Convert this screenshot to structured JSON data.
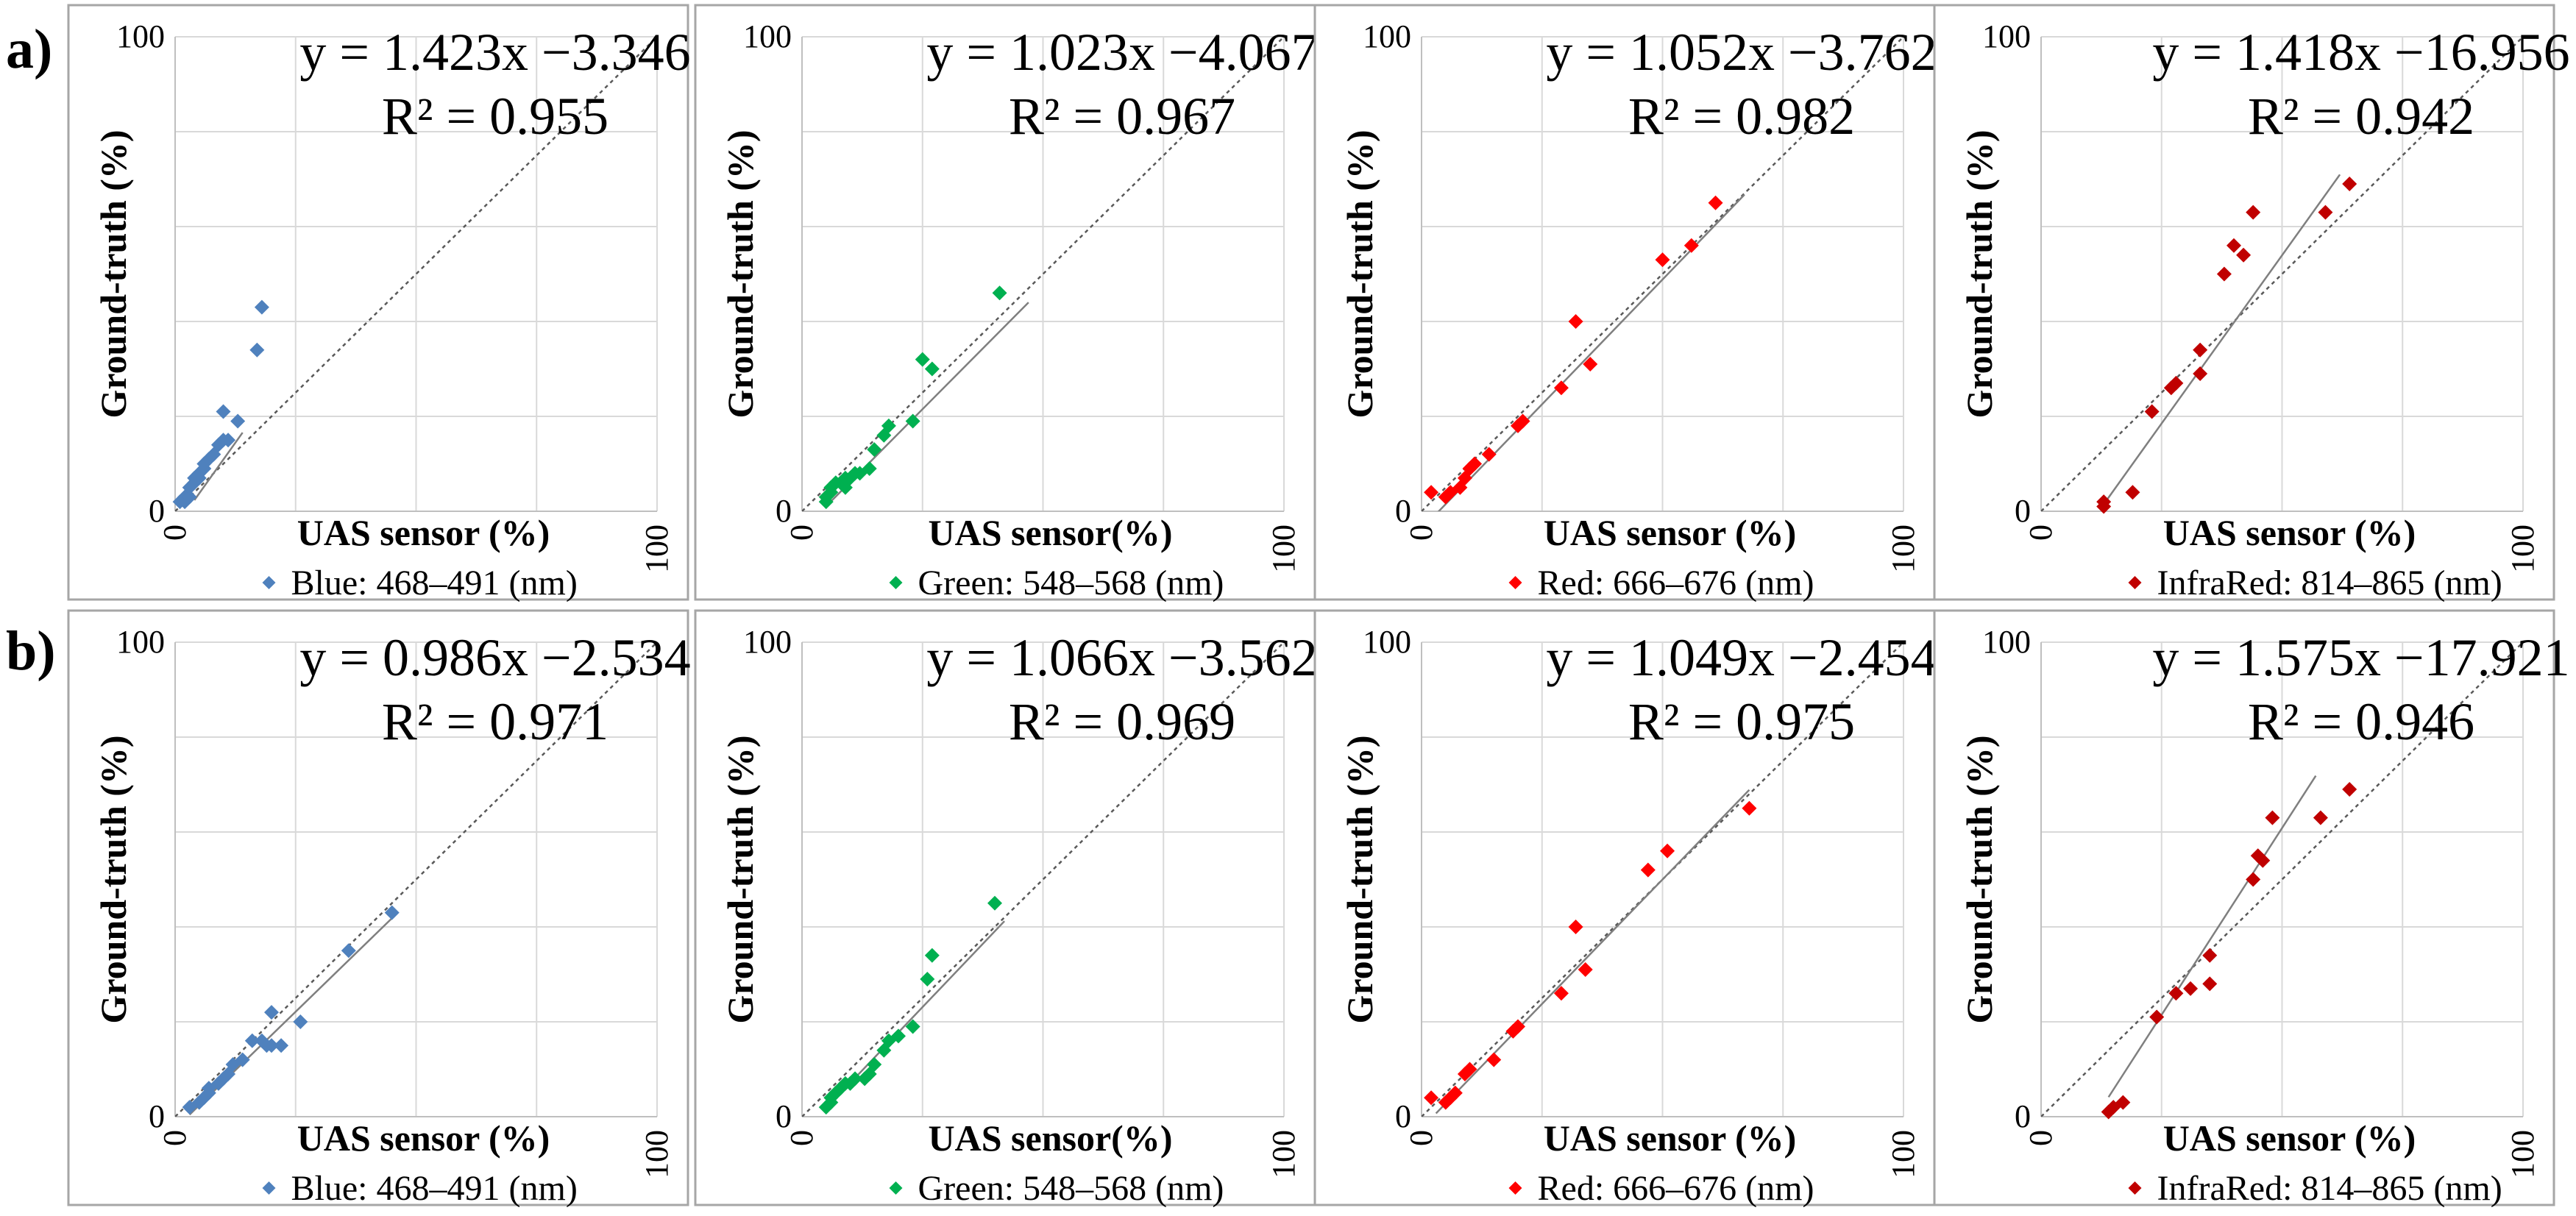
{
  "figure": {
    "row_labels": [
      "a)",
      "b)"
    ],
    "colors": {
      "blue": "#4f81bd",
      "green": "#00b050",
      "red": "#ff0000",
      "darkred": "#c00000",
      "grid": "#d9d9d9",
      "trend": "#7f7f7f",
      "identity": "#595959",
      "frame": "#a6a6a6"
    }
  },
  "chart_data": [
    {
      "row": "a)",
      "type": "scatter",
      "equation": "y = 1.423x −3.346",
      "r2": "R² = 0.955",
      "xlabel": "UAS sensor (%)",
      "ylabel": "Ground-truth (%)",
      "legend": "Blue: 468–491 (nm)",
      "color_key": "blue",
      "xlim": [
        0,
        100
      ],
      "ylim": [
        0,
        100
      ],
      "tick_labels": {
        "y_min": "0",
        "y_max": "100",
        "x_min": "0",
        "x_max": "100"
      },
      "slope": 1.423,
      "intercept": -3.346,
      "fit_range": [
        4,
        14
      ],
      "points": [
        [
          1,
          2
        ],
        [
          2,
          2
        ],
        [
          2,
          3
        ],
        [
          3,
          3
        ],
        [
          3,
          5
        ],
        [
          4,
          6
        ],
        [
          4,
          7
        ],
        [
          5,
          7
        ],
        [
          5,
          8
        ],
        [
          6,
          9
        ],
        [
          6,
          10
        ],
        [
          7,
          11
        ],
        [
          8,
          12
        ],
        [
          9,
          14
        ],
        [
          10,
          15
        ],
        [
          10,
          21
        ],
        [
          11,
          15
        ],
        [
          13,
          19
        ],
        [
          17,
          34
        ],
        [
          18,
          43
        ]
      ]
    },
    {
      "row": "a)",
      "type": "scatter",
      "equation": "y = 1.023x −4.067",
      "r2": "R² = 0.967",
      "xlabel": "UAS sensor(%)",
      "ylabel": "Ground-truth (%)",
      "legend": "Green: 548–568 (nm)",
      "color_key": "green",
      "xlim": [
        0,
        100
      ],
      "ylim": [
        0,
        100
      ],
      "tick_labels": {
        "y_min": "0",
        "y_max": "100",
        "x_min": "0",
        "x_max": "100"
      },
      "slope": 1.023,
      "intercept": -4.067,
      "fit_range": [
        6,
        47
      ],
      "points": [
        [
          5,
          2
        ],
        [
          5,
          3
        ],
        [
          6,
          4
        ],
        [
          6,
          5
        ],
        [
          7,
          6
        ],
        [
          8,
          6
        ],
        [
          9,
          5
        ],
        [
          9,
          7
        ],
        [
          10,
          7
        ],
        [
          11,
          8
        ],
        [
          12,
          8
        ],
        [
          14,
          9
        ],
        [
          15,
          13
        ],
        [
          17,
          16
        ],
        [
          18,
          18
        ],
        [
          23,
          19
        ],
        [
          25,
          32
        ],
        [
          27,
          30
        ],
        [
          41,
          46
        ]
      ]
    },
    {
      "row": "a)",
      "type": "scatter",
      "equation": "y = 1.052x −3.762",
      "r2": "R² = 0.982",
      "xlabel": "UAS sensor (%)",
      "ylabel": "Ground-truth (%)",
      "legend": "Red: 666–676 (nm)",
      "color_key": "red",
      "xlim": [
        0,
        100
      ],
      "ylim": [
        0,
        100
      ],
      "tick_labels": {
        "y_min": "0",
        "y_max": "100",
        "x_min": "0",
        "x_max": "100"
      },
      "slope": 1.052,
      "intercept": -3.762,
      "fit_range": [
        3,
        67
      ],
      "points": [
        [
          2,
          4
        ],
        [
          5,
          3
        ],
        [
          6,
          4
        ],
        [
          8,
          5
        ],
        [
          9,
          7
        ],
        [
          10,
          9
        ],
        [
          11,
          10
        ],
        [
          14,
          12
        ],
        [
          20,
          18
        ],
        [
          21,
          19
        ],
        [
          29,
          26
        ],
        [
          32,
          40
        ],
        [
          35,
          31
        ],
        [
          50,
          53
        ],
        [
          56,
          56
        ],
        [
          61,
          65
        ]
      ]
    },
    {
      "row": "a)",
      "type": "scatter",
      "equation": "y = 1.418x −16.956",
      "r2": "R² = 0.942",
      "xlabel": "UAS sensor (%)",
      "ylabel": "Ground-truth (%)",
      "legend": "InfraRed: 814–865 (nm)",
      "color_key": "darkred",
      "xlim": [
        0,
        100
      ],
      "ylim": [
        0,
        100
      ],
      "tick_labels": {
        "y_min": "0",
        "y_max": "100",
        "x_min": "0",
        "x_max": "100"
      },
      "slope": 1.418,
      "intercept": -16.956,
      "fit_range": [
        13,
        62
      ],
      "points": [
        [
          13,
          1
        ],
        [
          13,
          2
        ],
        [
          19,
          4
        ],
        [
          23,
          21
        ],
        [
          27,
          26
        ],
        [
          28,
          27
        ],
        [
          33,
          29
        ],
        [
          33,
          34
        ],
        [
          38,
          50
        ],
        [
          40,
          56
        ],
        [
          42,
          54
        ],
        [
          44,
          63
        ],
        [
          59,
          63
        ],
        [
          64,
          69
        ]
      ]
    },
    {
      "row": "b)",
      "type": "scatter",
      "equation": "y = 0.986x −2.534",
      "r2": "R² = 0.971",
      "xlabel": "UAS sensor (%)",
      "ylabel": "Ground-truth (%)",
      "legend": "Blue: 468–491 (nm)",
      "color_key": "blue",
      "xlim": [
        0,
        100
      ],
      "ylim": [
        0,
        100
      ],
      "tick_labels": {
        "y_min": "0",
        "y_max": "100",
        "x_min": "0",
        "x_max": "100"
      },
      "slope": 0.986,
      "intercept": -2.534,
      "fit_range": [
        3,
        45
      ],
      "points": [
        [
          3,
          2
        ],
        [
          5,
          3
        ],
        [
          6,
          4
        ],
        [
          7,
          5
        ],
        [
          7,
          6
        ],
        [
          9,
          7
        ],
        [
          10,
          8
        ],
        [
          11,
          9
        ],
        [
          12,
          11
        ],
        [
          14,
          12
        ],
        [
          16,
          16
        ],
        [
          18,
          16
        ],
        [
          19,
          15
        ],
        [
          20,
          22
        ],
        [
          20,
          15
        ],
        [
          22,
          15
        ],
        [
          26,
          20
        ],
        [
          36,
          35
        ],
        [
          45,
          43
        ]
      ]
    },
    {
      "row": "b)",
      "type": "scatter",
      "equation": "y = 1.066x −3.562",
      "r2": "R² = 0.969",
      "xlabel": "UAS sensor(%)",
      "ylabel": "Ground-truth (%)",
      "legend": "Green: 548–568 (nm)",
      "color_key": "green",
      "xlim": [
        0,
        100
      ],
      "ylim": [
        0,
        100
      ],
      "tick_labels": {
        "y_min": "0",
        "y_max": "100",
        "x_min": "0",
        "x_max": "100"
      },
      "slope": 1.066,
      "intercept": -3.562,
      "fit_range": [
        5,
        42
      ],
      "points": [
        [
          5,
          2
        ],
        [
          6,
          3
        ],
        [
          6,
          4
        ],
        [
          7,
          5
        ],
        [
          8,
          6
        ],
        [
          9,
          7
        ],
        [
          10,
          7
        ],
        [
          11,
          8
        ],
        [
          13,
          8
        ],
        [
          14,
          9
        ],
        [
          15,
          11
        ],
        [
          17,
          14
        ],
        [
          18,
          16
        ],
        [
          20,
          17
        ],
        [
          23,
          19
        ],
        [
          26,
          29
        ],
        [
          27,
          34
        ],
        [
          40,
          45
        ]
      ]
    },
    {
      "row": "b)",
      "type": "scatter",
      "equation": "y = 1.049x −2.454",
      "r2": "R² = 0.975",
      "xlabel": "UAS sensor (%)",
      "ylabel": "Ground-truth (%)",
      "legend": "Red: 666–676 (nm)",
      "color_key": "red",
      "xlim": [
        0,
        100
      ],
      "ylim": [
        0,
        100
      ],
      "tick_labels": {
        "y_min": "0",
        "y_max": "100",
        "x_min": "0",
        "x_max": "100"
      },
      "slope": 1.049,
      "intercept": -2.454,
      "fit_range": [
        3,
        68
      ],
      "points": [
        [
          2,
          4
        ],
        [
          5,
          3
        ],
        [
          6,
          4
        ],
        [
          7,
          5
        ],
        [
          9,
          9
        ],
        [
          10,
          10
        ],
        [
          15,
          12
        ],
        [
          19,
          18
        ],
        [
          20,
          19
        ],
        [
          29,
          26
        ],
        [
          32,
          40
        ],
        [
          34,
          31
        ],
        [
          47,
          52
        ],
        [
          51,
          56
        ],
        [
          68,
          65
        ]
      ]
    },
    {
      "row": "b)",
      "type": "scatter",
      "equation": "y = 1.575x −17.921",
      "r2": "R² = 0.946",
      "xlabel": "UAS sensor (%)",
      "ylabel": "Ground-truth (%)",
      "legend": "InfraRed: 814–865 (nm)",
      "color_key": "darkred",
      "xlim": [
        0,
        100
      ],
      "ylim": [
        0,
        100
      ],
      "tick_labels": {
        "y_min": "0",
        "y_max": "100",
        "x_min": "0",
        "x_max": "100"
      },
      "slope": 1.575,
      "intercept": -17.921,
      "fit_range": [
        14,
        57
      ],
      "points": [
        [
          14,
          1
        ],
        [
          15,
          2
        ],
        [
          17,
          3
        ],
        [
          24,
          21
        ],
        [
          28,
          26
        ],
        [
          31,
          27
        ],
        [
          35,
          28
        ],
        [
          35,
          34
        ],
        [
          44,
          50
        ],
        [
          45,
          55
        ],
        [
          46,
          54
        ],
        [
          48,
          63
        ],
        [
          58,
          63
        ],
        [
          64,
          69
        ]
      ]
    }
  ]
}
